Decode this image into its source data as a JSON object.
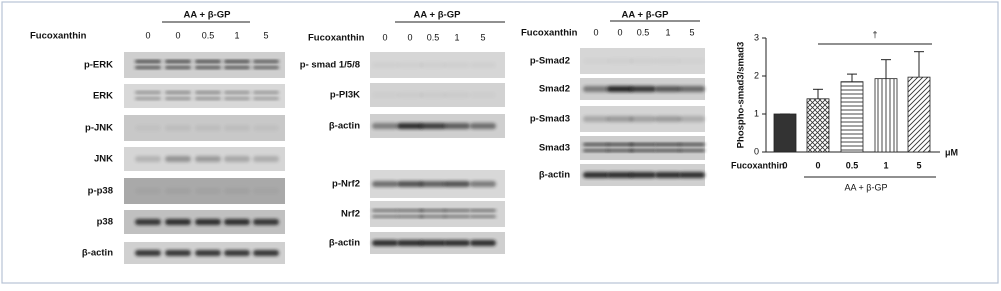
{
  "panels": [
    {
      "fucoxanthin_label": "Fucoxanthin",
      "treatment": "AA + β-GP",
      "lanes": [
        "0",
        "0",
        "0.5",
        "1",
        "5"
      ],
      "rows": [
        "p-ERK",
        "ERK",
        "p-JNK",
        "JNK",
        "p-p38",
        "p38",
        "β-actin"
      ]
    },
    {
      "fucoxanthin_label": "Fucoxanthin",
      "treatment": "AA + β-GP",
      "lanes": [
        "0",
        "0",
        "0.5",
        "1",
        "5"
      ],
      "rows": [
        "p- smad 1/5/8",
        "p-PI3K",
        "β-actin",
        "p-Nrf2",
        "Nrf2",
        "β-actin"
      ]
    },
    {
      "fucoxanthin_label": "Fucoxanthin",
      "treatment": "AA + β-GP",
      "lanes": [
        "0",
        "0",
        "0.5",
        "1",
        "5"
      ],
      "rows": [
        "p-Smad2",
        "Smad2",
        "p-Smad3",
        "Smad3",
        "β-actin"
      ]
    }
  ],
  "chart_data": {
    "type": "bar",
    "ylabel": "Phospho-smad3/smad3",
    "xlabel": "Fucoxanthin",
    "unit": "μM",
    "group_label": "AA + β-GP",
    "annotation": "†",
    "categories": [
      "0",
      "0",
      "0.5",
      "1",
      "5"
    ],
    "values": [
      1,
      1.4,
      1.85,
      1.93,
      1.97
    ],
    "errors": [
      0,
      0.25,
      0.2,
      0.5,
      0.67
    ],
    "color": "#333333",
    "ylim": [
      0,
      3
    ],
    "yticks": [
      0,
      1,
      2,
      3
    ]
  }
}
